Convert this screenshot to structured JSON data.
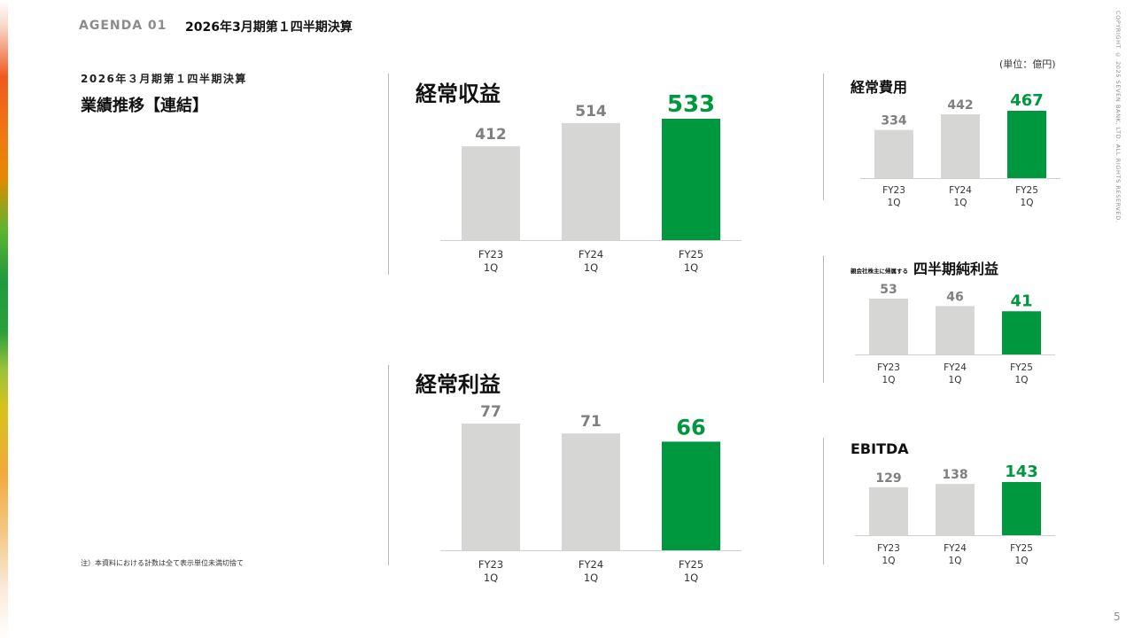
{
  "header": {
    "agenda_tag": "AGENDA 01",
    "agenda_title": "2026年3月期第１四半期決算"
  },
  "page": {
    "subtitle": "2026年３月期第１四半期決算",
    "title": "業績推移【連結】",
    "note": "注）本資料における計数は全て表示単位未満切捨て",
    "unit": "(単位：億円)",
    "copyright": "COPYRIGHT © 2025 SEVEN BANK, LTD. ALL RIGHTS RESERVED.",
    "page_number": "5"
  },
  "colors": {
    "past_bar": "#d6d6d4",
    "current_bar": "#00983f",
    "past_label": "#7f7f7f",
    "current_label": "#00983f",
    "axis": "#d0d0d0"
  },
  "chart_data": [
    {
      "id": "ordinary-income",
      "type": "bar",
      "title": "経常収益",
      "title_prefix": "",
      "categories": [
        "FY23\n1Q",
        "FY24\n1Q",
        "FY25\n1Q"
      ],
      "values": [
        412,
        514,
        533
      ],
      "data_labels": [
        "412",
        "514",
        "533"
      ],
      "highlight_index": 2,
      "ylim": [
        0,
        533
      ]
    },
    {
      "id": "ordinary-profit",
      "type": "bar",
      "title": "経常利益",
      "title_prefix": "",
      "categories": [
        "FY23\n1Q",
        "FY24\n1Q",
        "FY25\n1Q"
      ],
      "values": [
        77,
        71,
        66
      ],
      "data_labels": [
        "77",
        "71",
        "66"
      ],
      "highlight_index": 2,
      "ylim": [
        0,
        77
      ]
    },
    {
      "id": "ordinary-expenses",
      "type": "bar",
      "title": "経常費用",
      "title_prefix": "",
      "categories": [
        "FY23\n1Q",
        "FY24\n1Q",
        "FY25\n1Q"
      ],
      "values": [
        334,
        442,
        467
      ],
      "data_labels": [
        "334",
        "442",
        "467"
      ],
      "highlight_index": 2,
      "ylim": [
        0,
        467
      ]
    },
    {
      "id": "net-income",
      "type": "bar",
      "title": "四半期純利益",
      "title_prefix": "親会社株主に帰属する",
      "categories": [
        "FY23\n1Q",
        "FY24\n1Q",
        "FY25\n1Q"
      ],
      "values": [
        53,
        46,
        41
      ],
      "data_labels": [
        "53",
        "46",
        "41"
      ],
      "highlight_index": 2,
      "ylim": [
        0,
        53
      ]
    },
    {
      "id": "ebitda",
      "type": "bar",
      "title": "EBITDA",
      "title_prefix": "",
      "categories": [
        "FY23\n1Q",
        "FY24\n1Q",
        "FY25\n1Q"
      ],
      "values": [
        129,
        138,
        143
      ],
      "data_labels": [
        "129",
        "138",
        "143"
      ],
      "highlight_index": 2,
      "ylim": [
        0,
        143
      ]
    }
  ]
}
